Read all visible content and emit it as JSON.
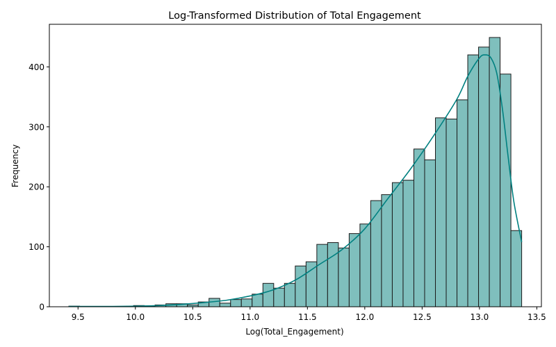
{
  "chart_data": {
    "type": "bar",
    "subtype": "histogram",
    "title": "Log-Transformed Distribution of Total Engagement",
    "xlabel": "Log(Total_Engagement)",
    "ylabel": "Frequency",
    "xlim": [
      9.25,
      13.54
    ],
    "ylim": [
      0,
      471
    ],
    "xticks": [
      9.5,
      10.0,
      10.5,
      11.0,
      11.5,
      12.0,
      12.5,
      13.0,
      13.5
    ],
    "xtick_labels": [
      "9.5",
      "10.0",
      "10.5",
      "11.0",
      "11.5",
      "12.0",
      "12.5",
      "13.0",
      "13.5"
    ],
    "yticks": [
      0,
      100,
      200,
      300,
      400
    ],
    "ytick_labels": [
      "0",
      "100",
      "200",
      "300",
      "400"
    ],
    "bin_edges": [
      9.42,
      9.514,
      9.608,
      9.702,
      9.796,
      9.89,
      9.984,
      10.078,
      10.172,
      10.266,
      10.36,
      10.454,
      10.548,
      10.642,
      10.736,
      10.83,
      10.924,
      11.018,
      11.112,
      11.206,
      11.3,
      11.394,
      11.488,
      11.582,
      11.676,
      11.77,
      11.864,
      11.958,
      12.052,
      12.146,
      12.24,
      12.334,
      12.428,
      12.522,
      12.616,
      12.71,
      12.804,
      12.898,
      12.992,
      13.086,
      13.18,
      13.274,
      13.368
    ],
    "values": [
      1,
      0,
      0,
      0,
      0,
      0,
      2,
      1,
      3,
      5,
      5,
      3,
      8,
      14,
      6,
      12,
      13,
      21,
      39,
      31,
      39,
      68,
      75,
      104,
      107,
      98,
      122,
      138,
      177,
      187,
      207,
      211,
      263,
      245,
      315,
      313,
      345,
      420,
      433,
      449,
      388,
      127
    ],
    "kde": {
      "x": [
        9.42,
        9.6,
        9.8,
        10.0,
        10.2,
        10.4,
        10.6,
        10.8,
        11.0,
        11.2,
        11.4,
        11.6,
        11.8,
        12.0,
        12.2,
        12.4,
        12.6,
        12.8,
        12.9,
        13.0,
        13.05,
        13.1,
        13.15,
        13.2,
        13.25,
        13.3,
        13.368
      ],
      "y": [
        0.5,
        0.5,
        0.5,
        1,
        2,
        4,
        7,
        11,
        18,
        28,
        45,
        70,
        95,
        130,
        180,
        230,
        285,
        345,
        385,
        415,
        420,
        415,
        390,
        330,
        250,
        175,
        108
      ]
    },
    "bar_color": "#7fbfbd",
    "edge_color": "#1a1a1a",
    "kde_color": "#008080",
    "grid": false
  }
}
